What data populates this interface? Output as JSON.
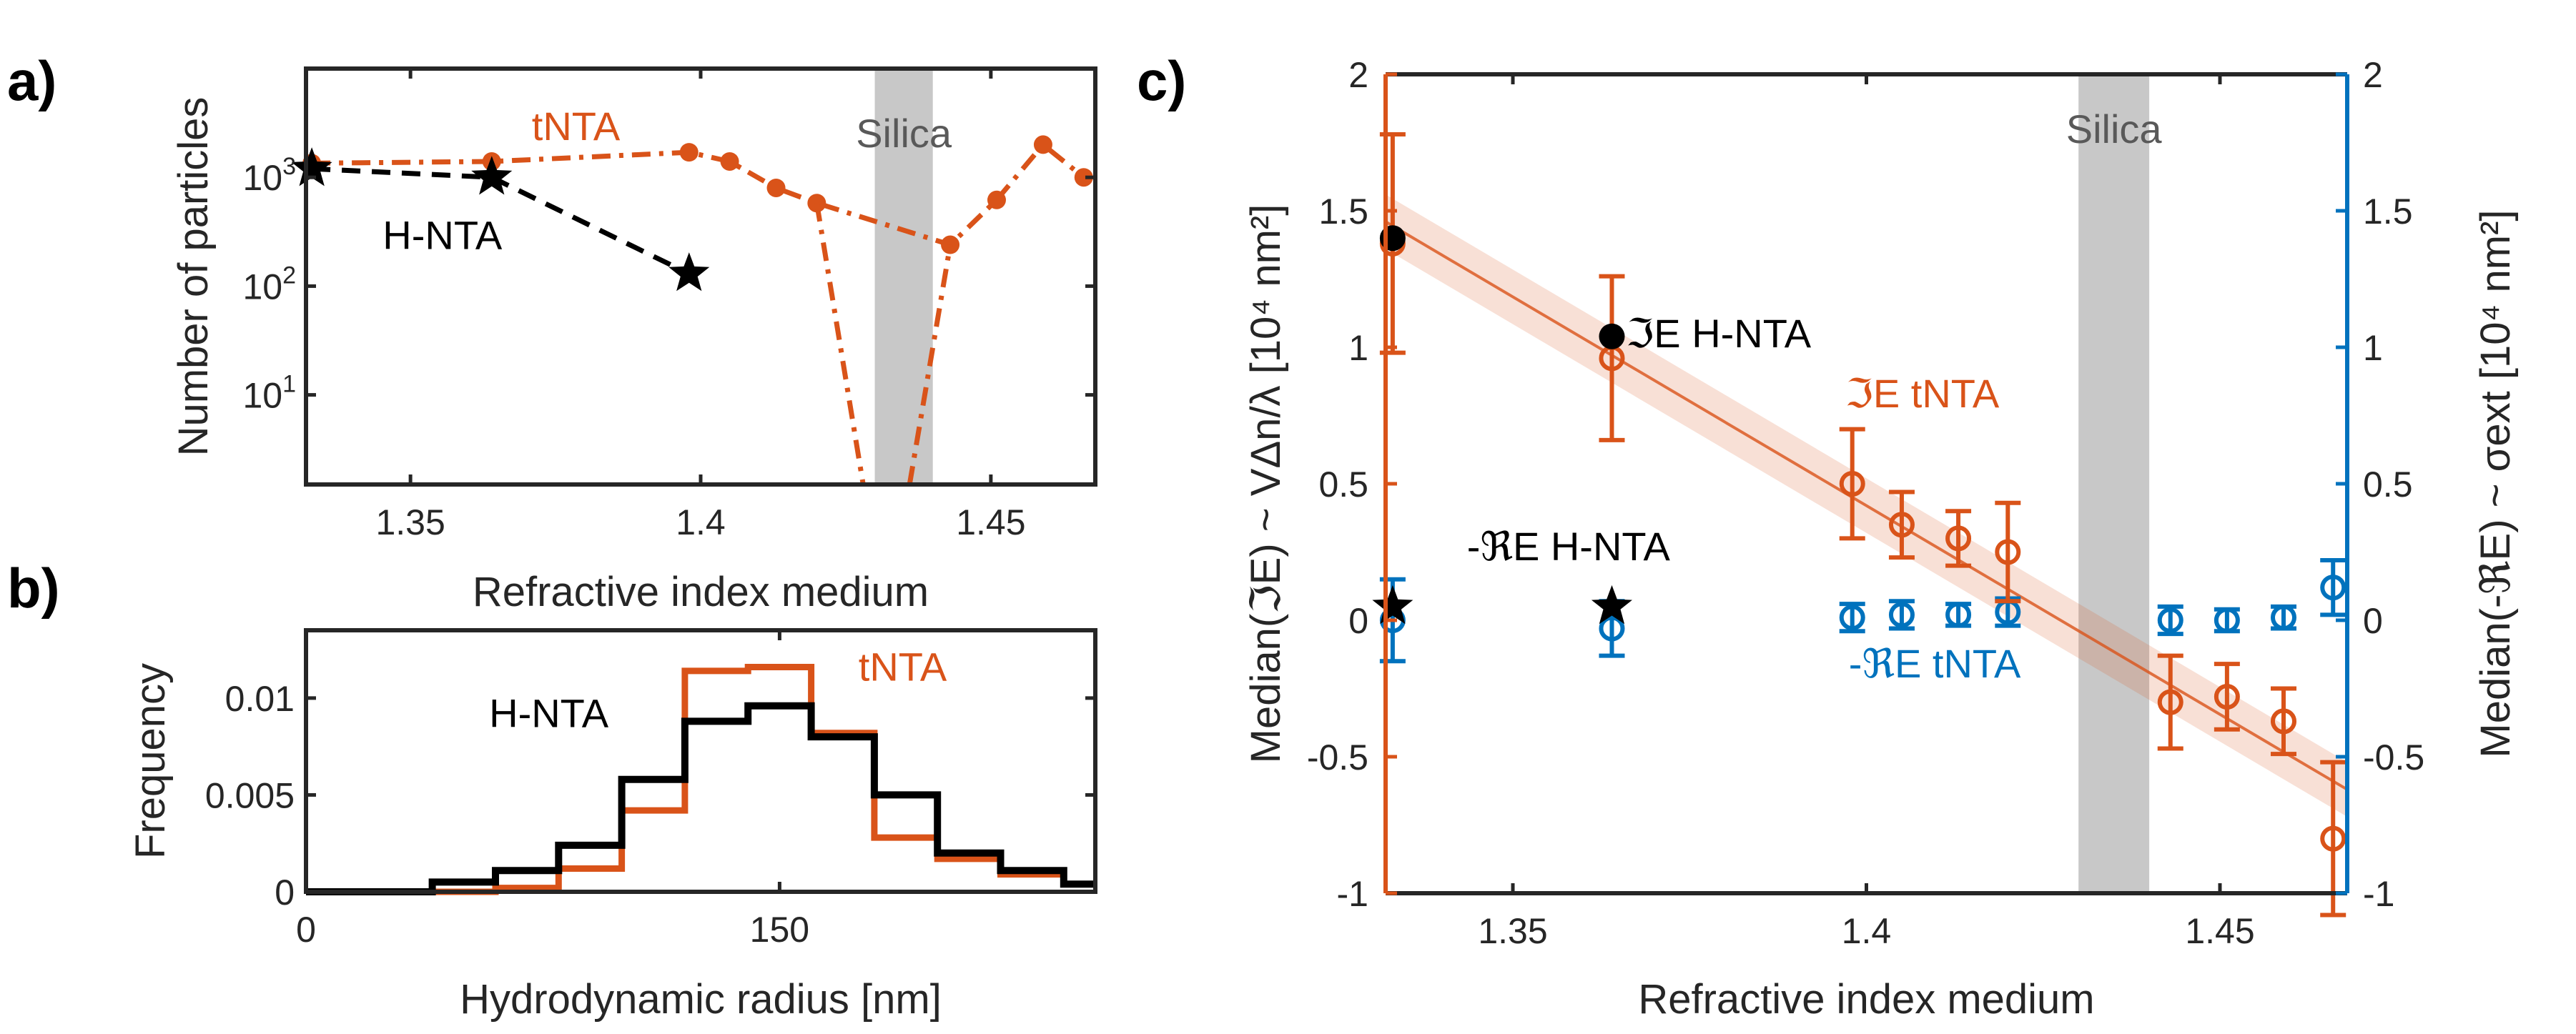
{
  "colors": {
    "orange": "#D95319",
    "blue": "#0072BD",
    "black": "#000000",
    "silica": "#C8C8C8",
    "axis": "#262626",
    "silica_text": "#595959"
  },
  "chart_data": [
    {
      "panel": "a)",
      "type": "line",
      "xlabel": "Refractive index medium",
      "ylabel": "Number of particles",
      "yscale": "log",
      "xlim": [
        1.332,
        1.468
      ],
      "ylim": [
        1.5,
        10000
      ],
      "xticks": [
        {
          "v": 1.35,
          "label": "1.35"
        },
        {
          "v": 1.4,
          "label": "1.4"
        },
        {
          "v": 1.45,
          "label": "1.45"
        }
      ],
      "yticks": [
        {
          "v": 10,
          "base": "10",
          "exp": "1"
        },
        {
          "v": 100,
          "base": "10",
          "exp": "2"
        },
        {
          "v": 1000,
          "base": "10",
          "exp": "3"
        }
      ],
      "silica_band": [
        1.43,
        1.44
      ],
      "silica_label": "Silica",
      "series": [
        {
          "name": "tNTA",
          "color": "orange",
          "style": "dashdot",
          "marker": "dot",
          "x": [
            1.333,
            1.364,
            1.398,
            1.405,
            1.413,
            1.42,
            1.443,
            1.451,
            1.459,
            1.466
          ],
          "y": [
            1350,
            1400,
            1700,
            1400,
            800,
            580,
            240,
            620,
            2000,
            1000
          ]
        },
        {
          "name": "tNTA-drop",
          "color": "orange",
          "style": "dashdot",
          "marker": "none",
          "x": [
            1.42,
            1.428
          ],
          "y": [
            580,
            1.5
          ]
        },
        {
          "name": "tNTA-rise",
          "color": "orange",
          "style": "dashdot",
          "marker": "none",
          "x": [
            1.436,
            1.443
          ],
          "y": [
            1.5,
            240
          ]
        },
        {
          "name": "H-NTA",
          "color": "black",
          "style": "dashed",
          "marker": "star",
          "x": [
            1.333,
            1.364,
            1.398
          ],
          "y": [
            1200,
            1000,
            130
          ]
        }
      ],
      "labels": [
        {
          "text": "tNTA",
          "color": "orange",
          "x": 1.3785,
          "y": 2200
        },
        {
          "text": "H-NTA",
          "color": "black",
          "x": 1.3555,
          "y": 220
        }
      ]
    },
    {
      "panel": "b)",
      "type": "histogram",
      "xlabel": "Hydrodynamic radius [nm]",
      "ylabel": "Frequency",
      "xlim": [
        0,
        250
      ],
      "ylim": [
        0,
        0.0135
      ],
      "xticks": [
        {
          "v": 0,
          "label": "0"
        },
        {
          "v": 150,
          "label": "150"
        }
      ],
      "yticks": [
        {
          "v": 0,
          "label": "0"
        },
        {
          "v": 0.005,
          "label": "0.005"
        },
        {
          "v": 0.01,
          "label": "0.01"
        }
      ],
      "edges": [
        0,
        20,
        40,
        60,
        80,
        100,
        120,
        140,
        160,
        180,
        200,
        220,
        240,
        250
      ],
      "series": [
        {
          "name": "tNTA",
          "color": "orange",
          "values": [
            0,
            0,
            0,
            0.0002,
            0.0012,
            0.0042,
            0.0114,
            0.0116,
            0.0082,
            0.0028,
            0.0017,
            0.0009,
            0.0004
          ]
        },
        {
          "name": "H-NTA",
          "color": "black",
          "values": [
            0,
            0,
            0.0005,
            0.0011,
            0.0024,
            0.0058,
            0.0088,
            0.0096,
            0.008,
            0.005,
            0.002,
            0.0011,
            0.0004
          ]
        }
      ],
      "labels": [
        {
          "text": "tNTA",
          "color": "orange",
          "x": 175,
          "y": 0.0109
        },
        {
          "text": "H-NTA",
          "color": "black",
          "x": 58,
          "y": 0.0085
        }
      ]
    },
    {
      "panel": "c)",
      "type": "scatter",
      "xlabel": "Refractive index medium",
      "ylabel_left": "Median(ℑE) ~ VΔn/λ [10⁴ nm²]",
      "ylabel_right": "Median(-ℜE) ~ σext [10⁴ nm²]",
      "xlim": [
        1.332,
        1.468
      ],
      "ylim": [
        -1,
        2
      ],
      "xticks": [
        {
          "v": 1.35,
          "label": "1.35"
        },
        {
          "v": 1.4,
          "label": "1.4"
        },
        {
          "v": 1.45,
          "label": "1.45"
        }
      ],
      "yticks": [
        {
          "v": -1,
          "label": "-1"
        },
        {
          "v": -0.5,
          "label": "-0.5"
        },
        {
          "v": 0,
          "label": "0"
        },
        {
          "v": 0.5,
          "label": "0.5"
        },
        {
          "v": 1,
          "label": "1"
        },
        {
          "v": 1.5,
          "label": "1.5"
        },
        {
          "v": 2,
          "label": "2"
        }
      ],
      "silica_band": [
        1.43,
        1.44
      ],
      "silica_label": "Silica",
      "fit": {
        "x": [
          1.332,
          1.468
        ],
        "y": [
          1.46,
          -0.62
        ],
        "band": 0.1
      },
      "imE_tNTA": {
        "x": [
          1.333,
          1.364,
          1.398,
          1.405,
          1.413,
          1.42,
          1.443,
          1.451,
          1.459,
          1.466
        ],
        "y": [
          1.38,
          0.96,
          0.5,
          0.35,
          0.3,
          0.25,
          -0.3,
          -0.28,
          -0.37,
          -0.8
        ],
        "err": [
          0.4,
          0.3,
          0.2,
          0.12,
          0.1,
          0.18,
          0.17,
          0.12,
          0.12,
          0.28
        ]
      },
      "reE_tNTA": {
        "x": [
          1.333,
          1.364,
          1.398,
          1.405,
          1.413,
          1.42,
          1.443,
          1.451,
          1.459,
          1.466
        ],
        "y": [
          0.0,
          -0.03,
          0.01,
          0.02,
          0.02,
          0.03,
          0.0,
          0.0,
          0.01,
          0.12
        ],
        "err": [
          0.15,
          0.1,
          0.05,
          0.05,
          0.04,
          0.05,
          0.05,
          0.04,
          0.04,
          0.1
        ]
      },
      "imE_HNTA": {
        "x": [
          1.333,
          1.364
        ],
        "y": [
          1.4,
          1.04
        ]
      },
      "reE_HNTA": {
        "x": [
          1.333,
          1.364
        ],
        "y": [
          0.05,
          0.05
        ]
      },
      "labels": [
        {
          "text": "ℑE H-NTA",
          "color": "black",
          "x": 1.366,
          "y": 1.0
        },
        {
          "text": "ℑE tNTA",
          "color": "orange",
          "x": 1.397,
          "y": 0.78
        },
        {
          "text": "-ℜE H-NTA",
          "color": "black",
          "x": 1.3435,
          "y": 0.22
        },
        {
          "text": "-ℜE tNTA",
          "color": "blue",
          "x": 1.3975,
          "y": -0.21
        }
      ]
    }
  ]
}
